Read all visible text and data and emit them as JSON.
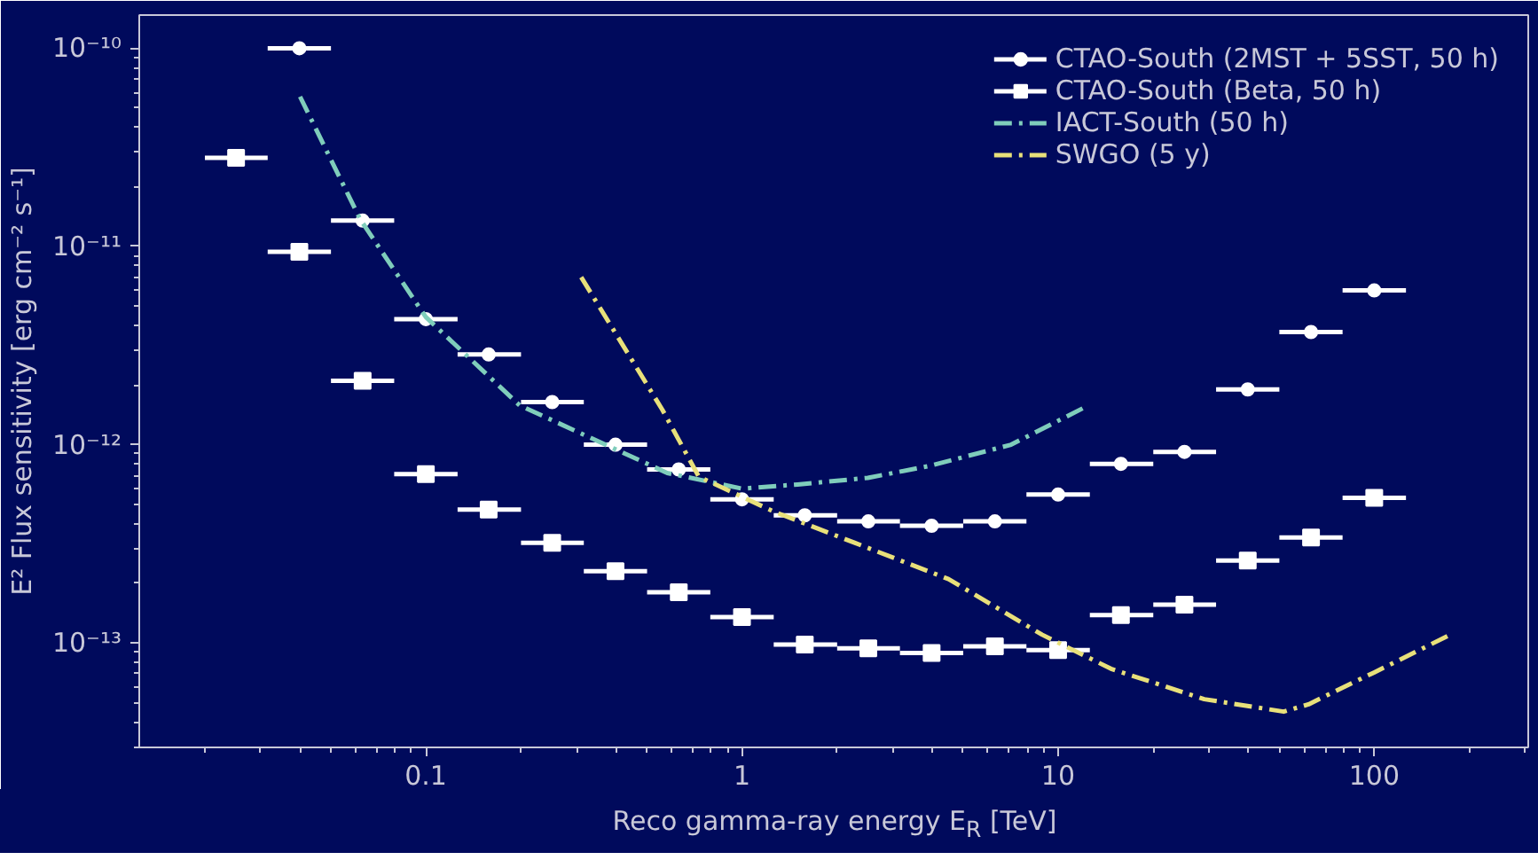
{
  "chart_data": {
    "type": "scatter",
    "xlabel": "Reco gamma-ray energy E$_{R}$ [TeV]",
    "ylabel": "E² Flux sensitivity [erg cm⁻² s⁻¹]",
    "log": "xy",
    "xlim": [
      0.0124,
      307
    ],
    "ylim": [
      2.97e-14,
      1.47e-10
    ],
    "xticks": [
      0.1,
      1,
      10,
      100
    ],
    "yticks": [
      {
        "value": 1e-13,
        "label": "10⁻¹³"
      },
      {
        "value": 1e-12,
        "label": "10⁻¹²"
      },
      {
        "value": 1e-11,
        "label": "10⁻¹¹"
      },
      {
        "value": 1e-10,
        "label": "10⁻¹⁰"
      }
    ],
    "grid": false,
    "legend": "top right",
    "series": [
      {
        "name": "CTAO-South (2MST + 5SST, 50 h)",
        "marker": "circle",
        "color": "#ffffff",
        "x": [
          0.0398,
          0.0631,
          0.1,
          0.158,
          0.251,
          0.398,
          0.631,
          1,
          1.58,
          2.51,
          3.98,
          6.31,
          10,
          15.8,
          25.1,
          39.8,
          63.1,
          100
        ],
        "values": [
          1e-10,
          1.35e-11,
          4.3e-12,
          2.85e-12,
          1.64e-12,
          1e-12,
          7.5e-13,
          5.3e-13,
          4.4e-13,
          4.1e-13,
          3.9e-13,
          4.1e-13,
          5.6e-13,
          8e-13,
          9.2e-13,
          1.9e-12,
          3.7e-12,
          6e-12
        ],
        "xerrors": [
          [
            0.0316,
            0.0501
          ],
          [
            0.0501,
            0.0794
          ],
          [
            0.0794,
            0.126
          ],
          [
            0.126,
            0.2
          ],
          [
            0.2,
            0.316
          ],
          [
            0.316,
            0.501
          ],
          [
            0.501,
            0.794
          ],
          [
            0.794,
            1.26
          ],
          [
            1.26,
            2.0
          ],
          [
            2.0,
            3.16
          ],
          [
            3.16,
            5.01
          ],
          [
            5.01,
            7.94
          ],
          [
            7.94,
            12.6
          ],
          [
            12.6,
            20.0
          ],
          [
            20.0,
            31.6
          ],
          [
            31.6,
            50.1
          ],
          [
            50.1,
            79.4
          ],
          [
            79.4,
            126
          ]
        ]
      },
      {
        "name": "CTAO-South (Beta, 50 h)",
        "marker": "square",
        "color": "#ffffff",
        "x": [
          0.0251,
          0.0398,
          0.0631,
          0.1,
          0.158,
          0.251,
          0.398,
          0.631,
          1,
          1.58,
          2.51,
          3.98,
          6.31,
          10,
          15.8,
          25.1,
          39.8,
          63.1,
          100
        ],
        "values": [
          2.8e-11,
          9.4e-12,
          2.1e-12,
          7.1e-13,
          4.7e-13,
          3.2e-13,
          2.3e-13,
          1.8e-13,
          1.35e-13,
          9.8e-14,
          9.4e-14,
          8.9e-14,
          9.6e-14,
          9.2e-14,
          1.38e-13,
          1.56e-13,
          2.6e-13,
          3.4e-13,
          5.4e-13
        ],
        "xerrors": [
          [
            0.02,
            0.0316
          ],
          [
            0.0316,
            0.0501
          ],
          [
            0.0501,
            0.0794
          ],
          [
            0.0794,
            0.126
          ],
          [
            0.126,
            0.2
          ],
          [
            0.2,
            0.316
          ],
          [
            0.316,
            0.501
          ],
          [
            0.501,
            0.794
          ],
          [
            0.794,
            1.26
          ],
          [
            1.26,
            2.0
          ],
          [
            2.0,
            3.16
          ],
          [
            3.16,
            5.01
          ],
          [
            5.01,
            7.94
          ],
          [
            7.94,
            12.6
          ],
          [
            12.6,
            20.0
          ],
          [
            20.0,
            31.6
          ],
          [
            31.6,
            50.1
          ],
          [
            50.1,
            79.4
          ],
          [
            79.4,
            126
          ]
        ]
      },
      {
        "name": "IACT-South (50 h)",
        "type": "line",
        "line_style": "dashdot",
        "color": "#7fcdbb",
        "x": [
          0.04,
          0.062,
          0.1,
          0.198,
          0.37,
          0.58,
          1.0,
          1.5,
          2.5,
          3.9,
          7.1,
          12.2
        ],
        "values": [
          5.7e-11,
          1.37e-11,
          4.4e-12,
          1.58e-12,
          1e-12,
          7.2e-13,
          6e-13,
          6.3e-13,
          6.8e-13,
          7.8e-13,
          1e-12,
          1.55e-12
        ]
      },
      {
        "name": "SWGO (5 y)",
        "type": "line",
        "line_style": "dashdot",
        "color": "#e8e07a",
        "x": [
          0.31,
          0.56,
          0.73,
          1.26,
          2.27,
          4.5,
          8.9,
          14.7,
          29,
          51.7,
          62,
          100,
          174
        ],
        "values": [
          7e-12,
          1.5e-12,
          6.9e-13,
          4.6e-13,
          3.2e-13,
          2.1e-13,
          1.1e-13,
          7.4e-14,
          5.2e-14,
          4.5e-14,
          4.9e-14,
          7.1e-14,
          1.1e-13
        ]
      }
    ]
  }
}
